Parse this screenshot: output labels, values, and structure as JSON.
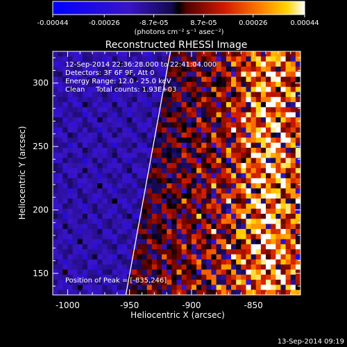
{
  "colorbar": {
    "tick_labels": [
      "-0.00044",
      "-0.00026",
      "-8.7e-05",
      "8.7e-05",
      "0.00026",
      "0.00044"
    ],
    "tick_values": [
      -0.00044,
      -0.00026,
      -8.7e-05,
      8.7e-05,
      0.00026,
      0.00044
    ],
    "units_label": "(photons cm⁻² s⁻¹ asec⁻²)",
    "range": [
      -0.00044,
      0.00044
    ]
  },
  "plot": {
    "title": "Reconstructed RHESSI Image",
    "info_lines": [
      "12-Sep-2014 22:36:28.000 to 22:41:04.000",
      "Detectors: 3F 6F 9F, Att 0",
      "Energy Range: 12.0 - 25.0 keV",
      "Clean     Total counts: 1.93E+03"
    ],
    "peak_label": "Position of Peak = [-835,246]",
    "timestamp": "13-Sep-2014 09:19"
  },
  "chart_data": {
    "type": "heatmap",
    "title": "Reconstructed RHESSI Image",
    "xlabel": "Heliocentric X (arcsec)",
    "ylabel": "Heliocentric Y (arcsec)",
    "xlim": [
      -1012,
      -812
    ],
    "ylim": [
      133,
      325
    ],
    "x_ticks": [
      -1000,
      -950,
      -900,
      -850
    ],
    "x_tick_labels": [
      "-1000",
      "-950",
      "-900",
      "-850"
    ],
    "y_ticks": [
      150,
      200,
      250,
      300
    ],
    "y_tick_labels": [
      "150",
      "200",
      "250",
      "300"
    ],
    "value_range": [
      -0.00044,
      0.00044
    ],
    "peak_position": [
      -835,
      246
    ],
    "limb_line": [
      [
        -953,
        133
      ],
      [
        -917,
        325
      ]
    ],
    "colors": {
      "background": "#000000",
      "limb": "#ffffff",
      "text": "#ffffff"
    }
  }
}
